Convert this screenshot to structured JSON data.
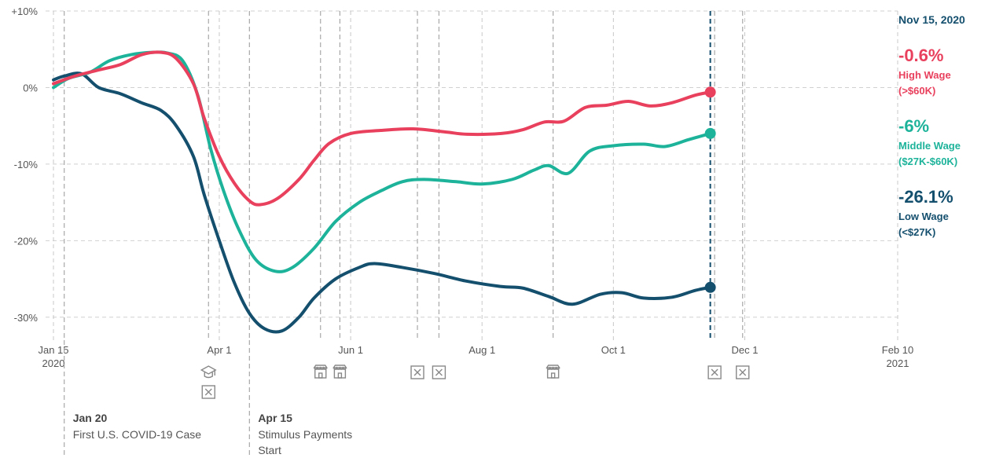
{
  "chart_data": {
    "type": "line",
    "x_start": "2020-01-15",
    "x_end": "2021-02-10",
    "x_ticks": [
      {
        "date": "2020-01-15",
        "label": "Jan 15",
        "sublabel": "2020"
      },
      {
        "date": "2020-04-01",
        "label": "Apr 1",
        "sublabel": ""
      },
      {
        "date": "2020-06-01",
        "label": "Jun 1",
        "sublabel": ""
      },
      {
        "date": "2020-08-01",
        "label": "Aug 1",
        "sublabel": ""
      },
      {
        "date": "2020-10-01",
        "label": "Oct 1",
        "sublabel": ""
      },
      {
        "date": "2020-12-01",
        "label": "Dec 1",
        "sublabel": ""
      },
      {
        "date": "2021-02-10",
        "label": "Feb 10",
        "sublabel": "2021"
      }
    ],
    "ylim": [
      -33,
      10
    ],
    "y_ticks": [
      {
        "value": 10,
        "label": "+10%"
      },
      {
        "value": 0,
        "label": "0%"
      },
      {
        "value": -10,
        "label": "-10%"
      },
      {
        "value": -20,
        "label": "-20%"
      },
      {
        "value": -30,
        "label": "-30%"
      }
    ],
    "grid": true,
    "current_date": "2020-11-15",
    "current_label": "Nov 15, 2020",
    "series": [
      {
        "name": "High Wage",
        "range": "(>$60K)",
        "final_label": "-0.6%",
        "color": "#e8405d",
        "points": [
          [
            "2020-01-15",
            0.5
          ],
          [
            "2020-01-25",
            1.5
          ],
          [
            "2020-02-05",
            2.3
          ],
          [
            "2020-02-15",
            3.0
          ],
          [
            "2020-02-25",
            4.3
          ],
          [
            "2020-03-05",
            4.6
          ],
          [
            "2020-03-12",
            3.8
          ],
          [
            "2020-03-20",
            0.5
          ],
          [
            "2020-03-25",
            -4.0
          ],
          [
            "2020-04-01",
            -9.0
          ],
          [
            "2020-04-08",
            -12.5
          ],
          [
            "2020-04-15",
            -14.8
          ],
          [
            "2020-04-20",
            -15.3
          ],
          [
            "2020-04-28",
            -14.5
          ],
          [
            "2020-05-08",
            -12.0
          ],
          [
            "2020-05-15",
            -9.5
          ],
          [
            "2020-05-22",
            -7.3
          ],
          [
            "2020-06-01",
            -6.0
          ],
          [
            "2020-06-15",
            -5.6
          ],
          [
            "2020-06-30",
            -5.4
          ],
          [
            "2020-07-15",
            -5.8
          ],
          [
            "2020-07-25",
            -6.1
          ],
          [
            "2020-08-10",
            -6.0
          ],
          [
            "2020-08-20",
            -5.5
          ],
          [
            "2020-08-30",
            -4.5
          ],
          [
            "2020-09-08",
            -4.4
          ],
          [
            "2020-09-18",
            -2.6
          ],
          [
            "2020-09-28",
            -2.3
          ],
          [
            "2020-10-08",
            -1.8
          ],
          [
            "2020-10-18",
            -2.4
          ],
          [
            "2020-10-28",
            -2.0
          ],
          [
            "2020-11-08",
            -1.0
          ],
          [
            "2020-11-15",
            -0.6
          ]
        ]
      },
      {
        "name": "Middle Wage",
        "range": "($27K-$60K)",
        "final_label": "-6%",
        "color": "#1db39a",
        "points": [
          [
            "2020-01-15",
            0.0
          ],
          [
            "2020-01-22",
            1.2
          ],
          [
            "2020-02-01",
            2.0
          ],
          [
            "2020-02-10",
            3.5
          ],
          [
            "2020-02-20",
            4.3
          ],
          [
            "2020-03-01",
            4.6
          ],
          [
            "2020-03-08",
            4.5
          ],
          [
            "2020-03-15",
            3.5
          ],
          [
            "2020-03-22",
            -1.0
          ],
          [
            "2020-03-28",
            -8.0
          ],
          [
            "2020-04-03",
            -13.5
          ],
          [
            "2020-04-10",
            -18.5
          ],
          [
            "2020-04-18",
            -22.5
          ],
          [
            "2020-04-27",
            -24.0
          ],
          [
            "2020-05-05",
            -23.5
          ],
          [
            "2020-05-15",
            -21.0
          ],
          [
            "2020-05-25",
            -17.5
          ],
          [
            "2020-06-05",
            -15.0
          ],
          [
            "2020-06-15",
            -13.5
          ],
          [
            "2020-06-25",
            -12.3
          ],
          [
            "2020-07-05",
            -12.0
          ],
          [
            "2020-07-20",
            -12.3
          ],
          [
            "2020-08-01",
            -12.6
          ],
          [
            "2020-08-15",
            -12.0
          ],
          [
            "2020-08-25",
            -10.8
          ],
          [
            "2020-09-01",
            -10.2
          ],
          [
            "2020-09-10",
            -11.2
          ],
          [
            "2020-09-20",
            -8.3
          ],
          [
            "2020-10-01",
            -7.6
          ],
          [
            "2020-10-15",
            -7.4
          ],
          [
            "2020-10-25",
            -7.7
          ],
          [
            "2020-11-05",
            -6.8
          ],
          [
            "2020-11-15",
            -6.0
          ]
        ]
      },
      {
        "name": "Low Wage",
        "range": "(<$27K)",
        "final_label": "-26.1%",
        "color": "#144f6e",
        "points": [
          [
            "2020-01-15",
            1.0
          ],
          [
            "2020-01-20",
            1.5
          ],
          [
            "2020-01-28",
            1.8
          ],
          [
            "2020-02-05",
            0.0
          ],
          [
            "2020-02-15",
            -0.8
          ],
          [
            "2020-02-25",
            -2.0
          ],
          [
            "2020-03-05",
            -3.0
          ],
          [
            "2020-03-12",
            -5.0
          ],
          [
            "2020-03-20",
            -9.0
          ],
          [
            "2020-03-25",
            -14.0
          ],
          [
            "2020-04-01",
            -20.0
          ],
          [
            "2020-04-08",
            -25.5
          ],
          [
            "2020-04-15",
            -29.5
          ],
          [
            "2020-04-22",
            -31.5
          ],
          [
            "2020-04-30",
            -31.8
          ],
          [
            "2020-05-08",
            -30.0
          ],
          [
            "2020-05-15",
            -27.5
          ],
          [
            "2020-05-25",
            -25.0
          ],
          [
            "2020-06-05",
            -23.5
          ],
          [
            "2020-06-12",
            -23.0
          ],
          [
            "2020-06-25",
            -23.5
          ],
          [
            "2020-07-10",
            -24.3
          ],
          [
            "2020-07-25",
            -25.3
          ],
          [
            "2020-08-10",
            -26.0
          ],
          [
            "2020-08-20",
            -26.2
          ],
          [
            "2020-09-01",
            -27.3
          ],
          [
            "2020-09-12",
            -28.3
          ],
          [
            "2020-09-25",
            -27.0
          ],
          [
            "2020-10-05",
            -26.8
          ],
          [
            "2020-10-15",
            -27.5
          ],
          [
            "2020-10-28",
            -27.4
          ],
          [
            "2020-11-08",
            -26.5
          ],
          [
            "2020-11-15",
            -26.1
          ]
        ]
      }
    ],
    "event_lines": [
      "2020-01-20",
      "2020-03-27",
      "2020-04-15",
      "2020-05-18",
      "2020-05-27",
      "2020-07-02",
      "2020-07-12",
      "2020-09-03",
      "2020-11-17",
      "2020-11-30"
    ],
    "event_icons": [
      {
        "date": "2020-03-27",
        "icons": [
          "school-icon",
          "closure-icon"
        ]
      },
      {
        "date": "2020-05-18",
        "icons": [
          "store-icon"
        ]
      },
      {
        "date": "2020-05-27",
        "icons": [
          "store-icon"
        ]
      },
      {
        "date": "2020-07-02",
        "icons": [
          "closure-icon"
        ]
      },
      {
        "date": "2020-07-12",
        "icons": [
          "closure-icon"
        ]
      },
      {
        "date": "2020-09-03",
        "icons": [
          "store-icon"
        ]
      },
      {
        "date": "2020-11-17",
        "icons": [
          "closure-icon"
        ]
      },
      {
        "date": "2020-11-30",
        "icons": [
          "closure-icon"
        ]
      }
    ],
    "annotations": [
      {
        "date": "2020-01-20",
        "title": "Jan 20",
        "lines": [
          "First U.S. COVID-19 Case"
        ]
      },
      {
        "date": "2020-04-15",
        "title": "Apr 15",
        "lines": [
          "Stimulus Payments",
          "Start"
        ]
      }
    ]
  }
}
